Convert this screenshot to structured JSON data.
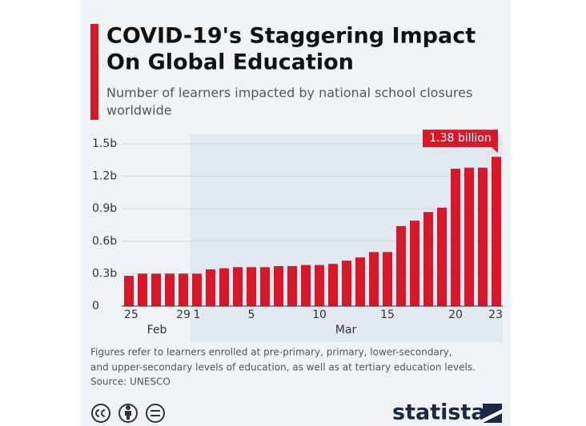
{
  "title_lines": [
    "COVID-19's Staggering Impact",
    "On Global Education"
  ],
  "subtitle_lines": [
    "Number of learners impacted by national school closures",
    "worldwide"
  ],
  "chart_data": {
    "type": "bar",
    "categories": [
      "25",
      null,
      null,
      null,
      "29",
      "1",
      null,
      null,
      null,
      "5",
      null,
      null,
      null,
      null,
      "10",
      null,
      null,
      null,
      null,
      "15",
      null,
      null,
      null,
      null,
      "20",
      null,
      null,
      "23"
    ],
    "groups": [
      "Feb",
      "Mar"
    ],
    "values": [
      0.28,
      0.3,
      0.3,
      0.3,
      0.3,
      0.3,
      0.34,
      0.35,
      0.36,
      0.36,
      0.36,
      0.37,
      0.37,
      0.38,
      0.38,
      0.39,
      0.42,
      0.45,
      0.5,
      0.5,
      0.74,
      0.79,
      0.87,
      0.91,
      1.27,
      1.28,
      1.28,
      1.38
    ],
    "value_labels": {
      "27": "1.38 billion"
    },
    "color": "#d7182a",
    "ylim": [
      0,
      1.5
    ],
    "yticks": [
      0,
      {
        "value": 0.3,
        "label": "0.3b"
      },
      {
        "value": 0.6,
        "label": "0.6b"
      },
      {
        "value": 0.9,
        "label": "0.9b"
      },
      {
        "value": 1.2,
        "label": "1.2b"
      },
      {
        "value": 1.5,
        "label": "1.5b"
      }
    ],
    "grid": true
  },
  "footnote_lines": [
    "Figures refer to learners enrolled at pre-primary, primary, lower-secondary,",
    "and upper-secondary levels of education, as well as at tertiary education levels."
  ],
  "source": "Source: UNESCO",
  "brand": "statista"
}
